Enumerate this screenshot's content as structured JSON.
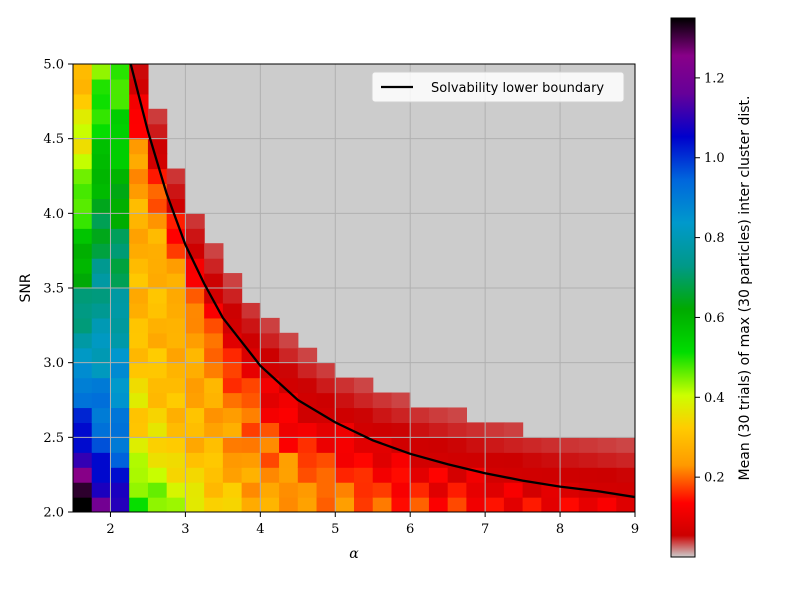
{
  "chart_data": {
    "type": "heatmap",
    "xlabel": "α",
    "ylabel": "SNR",
    "colorbar_label": "Mean (30 trials) of max (30 particles) inter cluster dist.",
    "xlim": [
      1.5,
      9
    ],
    "ylim": [
      2.0,
      5.0
    ],
    "x_ticks": [
      2,
      3,
      4,
      5,
      6,
      7,
      8,
      9
    ],
    "x_tick_labels": [
      "2",
      "3",
      "4",
      "5",
      "6",
      "7",
      "8",
      "9"
    ],
    "y_ticks": [
      2.0,
      2.5,
      3.0,
      3.5,
      4.0,
      4.5,
      5.0
    ],
    "y_tick_labels": [
      "2.0",
      "2.5",
      "3.0",
      "3.5",
      "4.0",
      "4.5",
      "5.0"
    ],
    "grid": true,
    "colormap": "nipy_spectral_r",
    "color_range": [
      0.0,
      1.35
    ],
    "colorbar_ticks": [
      0.2,
      0.4,
      0.6,
      0.8,
      1.0,
      1.2
    ],
    "colorbar_tick_labels": [
      "0.2",
      "0.4",
      "0.6",
      "0.8",
      "1.0",
      "1.2"
    ],
    "series": [
      {
        "name": "Solvability lower boundary",
        "type": "line",
        "color": "#000000",
        "x": [
          2.27,
          2.5,
          2.75,
          3.0,
          3.25,
          3.5,
          4.0,
          4.5,
          5.0,
          5.5,
          6.0,
          6.5,
          7.0,
          7.5,
          8.0,
          8.5,
          9.0
        ],
        "y": [
          5.0,
          4.55,
          4.13,
          3.79,
          3.53,
          3.3,
          2.98,
          2.75,
          2.6,
          2.48,
          2.39,
          2.32,
          2.26,
          2.21,
          2.17,
          2.14,
          2.1
        ]
      }
    ],
    "legend": {
      "position": "top-right",
      "entries": [
        "Solvability lower boundary"
      ]
    }
  },
  "colors": {
    "background_gray": "#cccccc",
    "grid": "#b0b0b0",
    "boundary": "#000000"
  }
}
